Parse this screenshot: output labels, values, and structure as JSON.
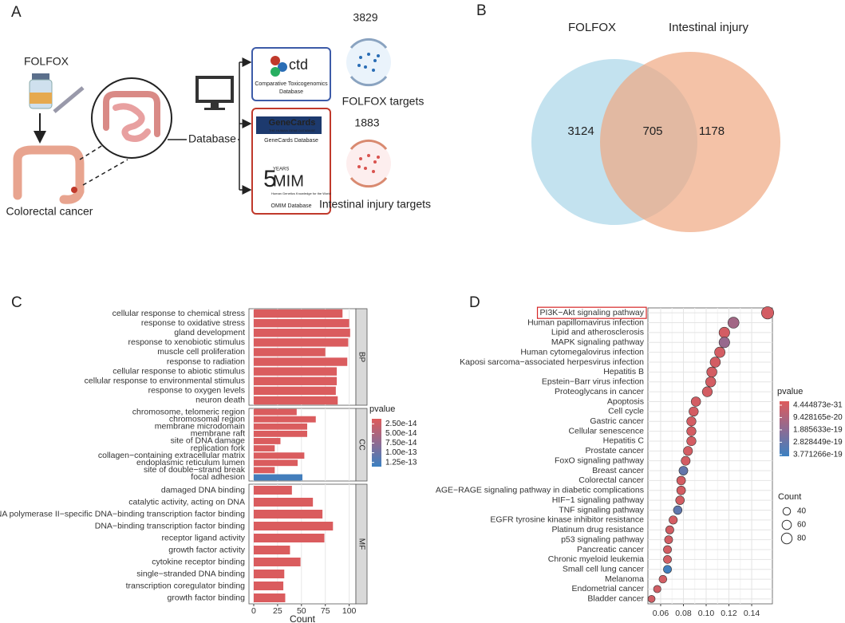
{
  "diagram": {
    "panel": "A",
    "drug": "FOLFOX",
    "disease": "Colorectal cancer",
    "source": "Database",
    "databases": [
      {
        "logo": "ctd",
        "name": [
          "Comparative Toxicogenomics",
          "Database"
        ]
      },
      {
        "logo": "GeneCards",
        "tagline": "THE HUMAN GENE DATABASE",
        "name": [
          "GeneCards Database"
        ]
      },
      {
        "logo": "MIM",
        "badge": "5",
        "years": "YEARS",
        "tagline": "Human Genetics Knowledge for the World",
        "name": [
          "OMIM Database"
        ]
      }
    ],
    "targets": [
      {
        "count": 3829,
        "label": "FOLFOX targets"
      },
      {
        "count": 1883,
        "label": "Intestinal injury targets"
      }
    ]
  },
  "chart_data": [
    {
      "type": "venn",
      "panel": "B",
      "sets": [
        "FOLFOX",
        "Intestinal injury"
      ],
      "colors": [
        "#4fb3d3",
        "#e0623f"
      ],
      "fills": [
        "#a9d6e8",
        "#f0a882"
      ],
      "values": [
        3124,
        705,
        1178
      ]
    },
    {
      "type": "bar",
      "panel": "C",
      "orientation": "horizontal",
      "xlabel": "Count",
      "xlim": [
        -5,
        107
      ],
      "xticks": [
        0,
        25,
        50,
        75,
        100
      ],
      "grid": true,
      "facets": [
        {
          "name": "BP",
          "categories": [
            "cellular response to chemical stress",
            "response to oxidative stress",
            "gland development",
            "response to xenobiotic stimulus",
            "muscle cell proliferation",
            "response to radiation",
            "cellular response to abiotic stimulus",
            "cellular response to environmental stimulus",
            "response to oxygen levels",
            "neuron death"
          ],
          "values": [
            93,
            100,
            101,
            99,
            75,
            98,
            87,
            87,
            86,
            88
          ],
          "pvalues": [
            1.5e-14,
            1.5e-14,
            1.5e-14,
            1.5e-14,
            1.5e-14,
            1.5e-14,
            1.5e-14,
            1.5e-14,
            1.5e-14,
            1.5e-14
          ]
        },
        {
          "name": "CC",
          "categories": [
            "chromosome, telomeric region",
            "chromosomal region",
            "membrane microdomain",
            "membrane raft",
            "site of DNA damage",
            "replication fork",
            "collagen−containing extracellular matrix",
            "endoplasmic reticulum lumen",
            "site of double−strand break",
            "focal adhesion"
          ],
          "values": [
            45,
            65,
            56,
            56,
            28,
            22,
            53,
            46,
            22,
            51
          ],
          "pvalues": [
            1.5e-14,
            1.5e-14,
            1.5e-14,
            1.5e-14,
            1.5e-14,
            1.5e-14,
            1.5e-14,
            1.5e-14,
            1.5e-14,
            1.3e-13
          ]
        },
        {
          "name": "MF",
          "categories": [
            "damaged DNA binding",
            "catalytic activity, acting on DNA",
            "RNA polymerase II−specific DNA−binding transcription factor binding",
            "DNA−binding transcription factor binding",
            "receptor ligand activity",
            "growth factor activity",
            "cytokine receptor binding",
            "single−stranded DNA binding",
            "transcription coregulator binding",
            "growth factor binding"
          ],
          "values": [
            40,
            62,
            72,
            83,
            74,
            38,
            49,
            32,
            31,
            33
          ],
          "pvalues": [
            1.5e-14,
            1.5e-14,
            1.5e-14,
            1.5e-14,
            1.5e-14,
            1.5e-14,
            1.5e-14,
            1.5e-14,
            1.5e-14,
            1.5e-14
          ]
        }
      ],
      "color_scale": {
        "title": "pvalue",
        "colors": [
          "#de5b5b",
          "#8f6b92",
          "#3b80c1"
        ],
        "lim": [
          1.2e-14,
          1.36e-13
        ],
        "ticks": [
          {
            "value": 2.5e-14,
            "label": "2.50e-14"
          },
          {
            "value": 5e-14,
            "label": "5.00e-14"
          },
          {
            "value": 7.5e-14,
            "label": "7.50e-14"
          },
          {
            "value": 1e-13,
            "label": "1.00e-13"
          },
          {
            "value": 1.25e-13,
            "label": "1.25e-13"
          }
        ]
      }
    },
    {
      "type": "dot",
      "panel": "D",
      "xlim": [
        0.0488,
        0.1582
      ],
      "xticks": [
        0.06,
        0.08,
        {
          "value": 0.1,
          "label": "0.10"
        },
        0.12,
        0.14
      ],
      "grid": true,
      "highlight": "PI3K−Akt signaling pathway",
      "categories": [
        "PI3K−Akt signaling pathway",
        "Human papillomavirus infection",
        "Lipid and atherosclerosis",
        "MAPK signaling pathway",
        "Human cytomegalovirus infection",
        "Kaposi sarcoma−associated herpesvirus infection",
        "Hepatitis B",
        "Epstein−Barr virus infection",
        "Proteoglycans in cancer",
        "Apoptosis",
        "Cell cycle",
        "Gastric cancer",
        "Cellular senescence",
        "Hepatitis C",
        "Prostate cancer",
        "FoxO signaling pathway",
        "Breast cancer",
        "Colorectal cancer",
        "AGE−RAGE signaling pathway in diabetic complications",
        "HIF−1 signaling pathway",
        "TNF signaling pathway",
        "EGFR tyrosine kinase inhibitor resistance",
        "Platinum drug resistance",
        "p53 signaling pathway",
        "Pancreatic cancer",
        "Chronic myeloid leukemia",
        "Small cell lung cancer",
        "Melanoma",
        "Endometrial cancer",
        "Bladder cancer"
      ],
      "values": [
        0.154,
        0.124,
        0.116,
        0.116,
        0.112,
        0.108,
        0.105,
        0.104,
        0.101,
        0.091,
        0.089,
        0.087,
        0.087,
        0.087,
        0.084,
        0.082,
        0.08,
        0.078,
        0.078,
        0.077,
        0.075,
        0.071,
        0.068,
        0.067,
        0.066,
        0.066,
        0.066,
        0.062,
        0.057,
        0.052
      ],
      "counts": [
        106,
        86,
        80,
        80,
        77,
        74,
        72,
        72,
        70,
        63,
        61,
        60,
        60,
        60,
        58,
        57,
        55,
        54,
        54,
        53,
        52,
        49,
        47,
        46,
        46,
        46,
        46,
        43,
        39,
        36
      ],
      "pvalues": [
        4.444873e-31,
        1.3e-19,
        2e-25,
        1.6e-19,
        5e-25,
        8e-25,
        1e-24,
        2e-24,
        3e-24,
        5e-24,
        8e-24,
        1e-23,
        2e-23,
        3e-23,
        5e-23,
        8e-23,
        2.9e-19,
        1e-22,
        2e-22,
        3e-22,
        3e-19,
        5e-22,
        8e-22,
        1e-21,
        2e-21,
        3e-21,
        3.75e-19,
        5e-21,
        8e-21,
        1e-20
      ],
      "color_scale": {
        "title": "pvalue",
        "colors": [
          "#de5b5b",
          "#8f6b92",
          "#3b80c1"
        ],
        "lim": [
          -3e-20,
          3.9e-19
        ],
        "ticks": [
          {
            "value": 4.444873e-31,
            "label": "4.444873e-31"
          },
          {
            "value": 9.428165e-20,
            "label": "9.428165e-20"
          },
          {
            "value": 1.885633e-19,
            "label": "1.885633e-19"
          },
          {
            "value": 2.828449e-19,
            "label": "2.828449e-19"
          },
          {
            "value": 3.771266e-19,
            "label": "3.771266e-19"
          }
        ]
      },
      "size_legend": {
        "title": "Count",
        "values": [
          40,
          60,
          80
        ]
      }
    }
  ]
}
